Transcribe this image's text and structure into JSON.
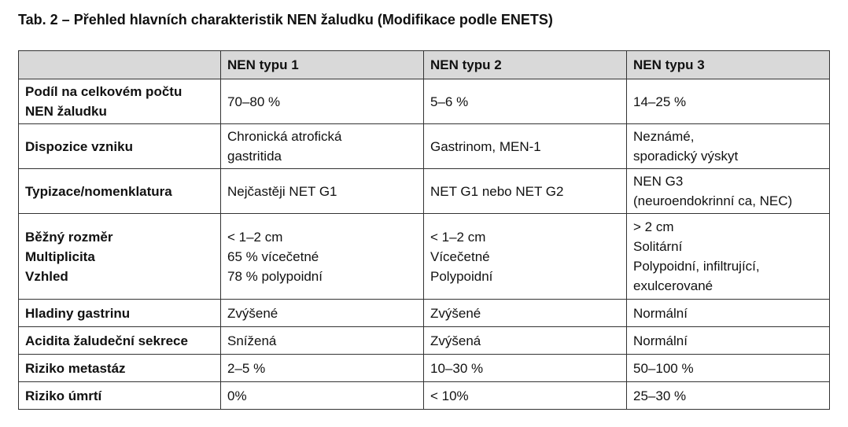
{
  "title": "Tab. 2 – Přehled hlavních charakteristik NEN žaludku (Modifikace podle ENETS)",
  "table": {
    "columns": [
      "NEN typu 1",
      "NEN typu 2",
      "NEN typu 3"
    ],
    "rows": [
      {
        "label": [
          "Podíl na celkovém počtu",
          "NEN žaludku"
        ],
        "cells": [
          [
            "70–80 %"
          ],
          [
            "5–6 %"
          ],
          [
            "14–25 %"
          ]
        ]
      },
      {
        "label": [
          "Dispozice vzniku"
        ],
        "cells": [
          [
            "Chronická atrofická",
            "gastritida"
          ],
          [
            "Gastrinom, MEN-1"
          ],
          [
            "Neznámé,",
            "sporadický výskyt"
          ]
        ]
      },
      {
        "label": [
          "Typizace/nomenklatura"
        ],
        "cells": [
          [
            "Nejčastěji NET G1"
          ],
          [
            "NET G1 nebo NET G2"
          ],
          [
            "NEN G3",
            "(neuroendokrinní ca, NEC)"
          ]
        ]
      },
      {
        "label": [
          "Běžný rozměr",
          "Multiplicita",
          "Vzhled"
        ],
        "cells": [
          [
            "< 1–2 cm",
            "65 % vícečetné",
            "78 % polypoidní"
          ],
          [
            "< 1–2 cm",
            "Vícečetné",
            "Polypoidní"
          ],
          [
            "> 2 cm",
            "Solitární",
            "Polypoidní, infiltrující,",
            "exulcerované"
          ]
        ]
      },
      {
        "label": [
          "Hladiny gastrinu"
        ],
        "cells": [
          [
            "Zvýšené"
          ],
          [
            "Zvýšené"
          ],
          [
            "Normální"
          ]
        ]
      },
      {
        "label": [
          "Acidita žaludeční sekrece"
        ],
        "cells": [
          [
            "Snížená"
          ],
          [
            "Zvýšená"
          ],
          [
            "Normální"
          ]
        ]
      },
      {
        "label": [
          "Riziko metastáz"
        ],
        "cells": [
          [
            "2–5 %"
          ],
          [
            "10–30 %"
          ],
          [
            "50–100 %"
          ]
        ]
      },
      {
        "label": [
          "Riziko úmrtí"
        ],
        "cells": [
          [
            "0%"
          ],
          [
            "< 10%"
          ],
          [
            "25–30 %"
          ]
        ]
      }
    ]
  }
}
